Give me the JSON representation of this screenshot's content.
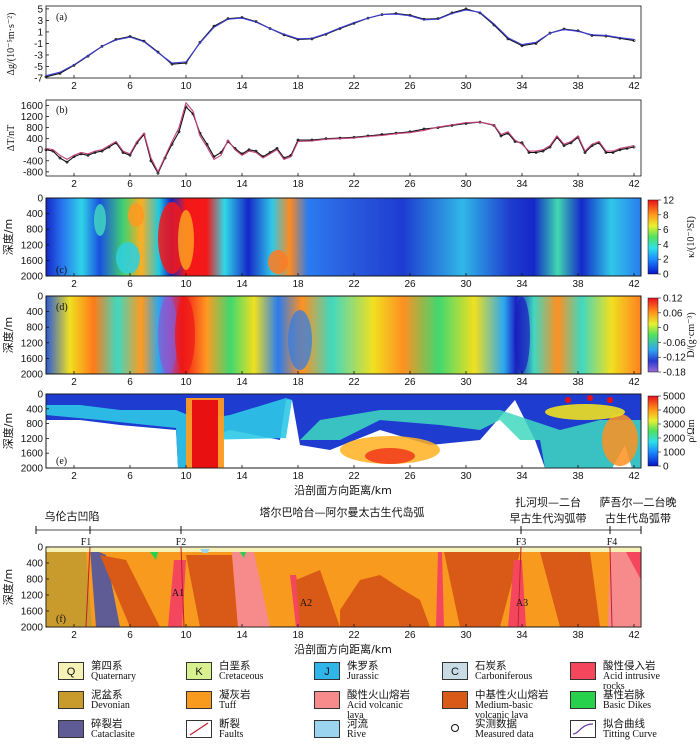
{
  "chart_data": [
    {
      "panel": "(a)",
      "type": "line",
      "ylabel": "Δg/(10⁻⁵m·s⁻²)",
      "xlim": [
        0,
        42.5
      ],
      "ylim": [
        -7,
        5.5
      ],
      "yticks": [
        5,
        3,
        1,
        -1,
        -3,
        -5,
        -7
      ],
      "xticks": [
        2,
        6,
        10,
        14,
        18,
        22,
        26,
        30,
        34,
        38,
        42
      ],
      "series": [
        {
          "name": "实测数据",
          "color": "#111111",
          "x": [
            0,
            1,
            2,
            3,
            4,
            5,
            6,
            7,
            8,
            9,
            10,
            11,
            12,
            13,
            14,
            15,
            16,
            17,
            18,
            19,
            20,
            21,
            22,
            23,
            24,
            25,
            26,
            27,
            28,
            29,
            30,
            31,
            32,
            33,
            34,
            35,
            36,
            37,
            38,
            39,
            40,
            41,
            42
          ],
          "y": [
            -6.8,
            -6.2,
            -4.8,
            -3.2,
            -1.5,
            -0.3,
            0.2,
            -0.6,
            -2.5,
            -4.6,
            -4.4,
            -0.8,
            2.0,
            3.3,
            3.5,
            2.8,
            1.6,
            0.5,
            -0.3,
            -0.2,
            0.6,
            1.6,
            2.5,
            3.4,
            4.0,
            4.2,
            3.9,
            3.2,
            3.3,
            4.3,
            5.0,
            4.3,
            2.2,
            -0.2,
            -1.4,
            -1.0,
            0.8,
            1.5,
            1.2,
            0.4,
            0.3,
            -0.1,
            -0.5
          ]
        },
        {
          "name": "拟合曲线",
          "color": "#3c3cd6",
          "x": [
            0,
            1,
            2,
            3,
            4,
            5,
            6,
            7,
            8,
            9,
            10,
            11,
            12,
            13,
            14,
            15,
            16,
            17,
            18,
            19,
            20,
            21,
            22,
            23,
            24,
            25,
            26,
            27,
            28,
            29,
            30,
            31,
            32,
            33,
            34,
            35,
            36,
            37,
            38,
            39,
            40,
            41,
            42
          ],
          "y": [
            -6.6,
            -6.0,
            -4.7,
            -3.1,
            -1.5,
            -0.4,
            0.1,
            -0.7,
            -2.6,
            -4.4,
            -4.2,
            -0.9,
            1.8,
            3.2,
            3.4,
            2.7,
            1.6,
            0.6,
            -0.2,
            -0.1,
            0.7,
            1.7,
            2.6,
            3.4,
            4.0,
            4.1,
            3.8,
            3.1,
            3.2,
            4.2,
            4.8,
            4.4,
            2.4,
            0.0,
            -1.2,
            -0.8,
            0.8,
            1.4,
            1.1,
            0.5,
            0.4,
            0.0,
            -0.3
          ]
        }
      ]
    },
    {
      "panel": "(b)",
      "type": "line",
      "ylabel": "ΔT/nT",
      "xlim": [
        0,
        42.5
      ],
      "ylim": [
        -950,
        1800
      ],
      "yticks": [
        1600,
        1200,
        800,
        400,
        0,
        -400,
        -800
      ],
      "xticks": [
        2,
        6,
        10,
        14,
        18,
        22,
        26,
        30,
        34,
        38,
        42
      ],
      "series": [
        {
          "name": "实测数据",
          "color": "#111111",
          "x": [
            0,
            0.5,
            1,
            1.5,
            2,
            2.5,
            3,
            3.5,
            4,
            4.5,
            5,
            5.5,
            6,
            6.5,
            7,
            7.5,
            8,
            8.5,
            9,
            9.5,
            10,
            10.5,
            11,
            11.5,
            12,
            12.5,
            13,
            13.5,
            14,
            14.5,
            15,
            15.5,
            16,
            16.5,
            17,
            17.5,
            18,
            19,
            20,
            21,
            22,
            23,
            24,
            25,
            26,
            27,
            28,
            29,
            30,
            31,
            32,
            32.5,
            33,
            33.5,
            34,
            34.5,
            35,
            35.5,
            36,
            36.5,
            37,
            37.5,
            38,
            38.5,
            39,
            39.5,
            40,
            40.5,
            41,
            41.5,
            42
          ],
          "y": [
            0,
            -50,
            -300,
            -450,
            -250,
            -150,
            -200,
            -100,
            -50,
            100,
            250,
            -100,
            -200,
            250,
            550,
            -400,
            -850,
            -300,
            200,
            650,
            1550,
            1300,
            600,
            200,
            -250,
            -100,
            300,
            50,
            -150,
            0,
            -50,
            -250,
            -100,
            50,
            -300,
            -200,
            350,
            350,
            400,
            420,
            450,
            500,
            550,
            600,
            650,
            750,
            800,
            880,
            950,
            1000,
            880,
            500,
            600,
            300,
            250,
            -100,
            -100,
            -50,
            100,
            450,
            150,
            250,
            450,
            -100,
            150,
            250,
            -100,
            -100,
            0,
            50,
            100
          ]
        },
        {
          "name": "拟合曲线",
          "color": "#c2407a",
          "x": [
            0,
            0.5,
            1,
            1.5,
            2,
            2.5,
            3,
            3.5,
            4,
            4.5,
            5,
            5.5,
            6,
            6.5,
            7,
            7.5,
            8,
            8.5,
            9,
            9.5,
            10,
            10.5,
            11,
            11.5,
            12,
            12.5,
            13,
            13.5,
            14,
            14.5,
            15,
            15.5,
            16,
            16.5,
            17,
            17.5,
            18,
            19,
            20,
            21,
            22,
            23,
            24,
            25,
            26,
            27,
            28,
            29,
            30,
            31,
            32,
            32.5,
            33,
            33.5,
            34,
            34.5,
            35,
            35.5,
            36,
            36.5,
            37,
            37.5,
            38,
            38.5,
            39,
            39.5,
            40,
            40.5,
            41,
            41.5,
            42
          ],
          "y": [
            50,
            0,
            -200,
            -350,
            -200,
            -100,
            -150,
            -50,
            0,
            150,
            300,
            -50,
            -150,
            300,
            600,
            -300,
            -800,
            -250,
            300,
            800,
            1700,
            1400,
            500,
            100,
            -350,
            -200,
            350,
            0,
            -200,
            -50,
            -100,
            -300,
            -150,
            0,
            -350,
            -250,
            300,
            320,
            380,
            400,
            430,
            480,
            520,
            580,
            620,
            700,
            820,
            900,
            980,
            1000,
            900,
            550,
            650,
            350,
            200,
            -50,
            -50,
            0,
            150,
            500,
            200,
            300,
            500,
            -50,
            200,
            300,
            -50,
            -50,
            50,
            100,
            150
          ]
        }
      ]
    },
    {
      "panel": "(c)",
      "type": "heatmap",
      "ylabel": "深度/m",
      "colorbar_label": "κ/(10⁻³SI)",
      "colorbar_ticks": [
        12,
        8,
        6,
        4,
        2,
        0
      ],
      "yticks": [
        0,
        400,
        800,
        1200,
        1600,
        2000
      ],
      "xticks": [
        2,
        6,
        10,
        14,
        18,
        22,
        26,
        30,
        34,
        38,
        42
      ]
    },
    {
      "panel": "(d)",
      "type": "heatmap",
      "ylabel": "深度/m",
      "colorbar_label": "D/(g·cm⁻³)",
      "colorbar_ticks": [
        0.12,
        0.06,
        0.0,
        -0.06,
        -0.12,
        -0.18
      ],
      "yticks": [
        0,
        400,
        800,
        1200,
        1600,
        2000
      ],
      "xticks": [
        2,
        6,
        10,
        14,
        18,
        22,
        26,
        30,
        34,
        38,
        42
      ]
    },
    {
      "panel": "(e)",
      "type": "heatmap",
      "ylabel": "深度/m",
      "xlabel": "沿剖面方向距离/km",
      "colorbar_label": "ρ/Ωm",
      "colorbar_ticks": [
        5000,
        4000,
        3000,
        2000,
        1000,
        0
      ],
      "yticks": [
        0,
        400,
        800,
        1200,
        1600,
        2000
      ],
      "xticks": [
        2,
        6,
        10,
        14,
        18,
        22,
        26,
        30,
        34,
        38,
        42
      ]
    },
    {
      "panel": "(f)",
      "type": "geologic-section",
      "ylabel": "深度/m",
      "xlabel": "沿剖面方向距离/km",
      "yticks": [
        0,
        400,
        800,
        1200,
        1600,
        2000
      ],
      "xticks": [
        2,
        6,
        10,
        14,
        18,
        22,
        26,
        30,
        34,
        38,
        42
      ],
      "faults": [
        "F1",
        "F2",
        "F3",
        "F4"
      ],
      "bodies": [
        "A1",
        "A2",
        "A3"
      ],
      "regions": [
        "乌伦古凹陷",
        "塔尔巴哈台—阿尔曼太古生代岛弧",
        "扎河坝—二台",
        "早古生代沟弧带",
        "萨吾尔—二台晚",
        "古生代岛弧带"
      ]
    }
  ],
  "legend": [
    {
      "code": "Q",
      "zh": "第四系",
      "en": "Quaternary",
      "color": "#f6f1b5"
    },
    {
      "code": "K",
      "zh": "白垩系",
      "en": "Cretaceous",
      "color": "#d9f08f"
    },
    {
      "code": "J",
      "zh": "侏罗系",
      "en": "Jurassic",
      "color": "#2fb5ea"
    },
    {
      "code": "C",
      "zh": "石炭系",
      "en": "Carboniferous",
      "color": "#c9dce6"
    },
    {
      "code": "",
      "zh": "酸性侵入岩",
      "en": "Acid intrusive",
      "en2": "rocks",
      "color": "#f4475e"
    },
    {
      "code": "",
      "zh": "泥盆系",
      "en": "Devonian",
      "color": "#c99a2c"
    },
    {
      "code": "",
      "zh": "凝灰岩",
      "en": "Tuff",
      "color": "#f79a1e"
    },
    {
      "code": "",
      "zh": "酸性火山熔岩",
      "en": "Acid volcanic",
      "en2": "lava",
      "color": "#f78a8a"
    },
    {
      "code": "",
      "zh": "中基性火山熔岩",
      "en": "Medium-basic",
      "en2": "volcanic lava",
      "color": "#d95a16"
    },
    {
      "code": "",
      "zh": "基性岩脉",
      "en": "Basic Dikes",
      "color": "#27d14b"
    },
    {
      "code": "",
      "zh": "碎裂岩",
      "en": "Cataclasite",
      "color": "#5f5b94"
    },
    {
      "code": "",
      "zh": "断裂",
      "en": "Faults",
      "color": "#ffffff"
    },
    {
      "code": "",
      "zh": "河流",
      "en": "Rive",
      "color": "#9bd4ee"
    },
    {
      "code": "",
      "zh": "实测数据",
      "en": "Measured data",
      "color": "#ffffff"
    },
    {
      "code": "",
      "zh": "拟合曲线",
      "en": "Titting Curve",
      "color": "#ffffff"
    }
  ]
}
